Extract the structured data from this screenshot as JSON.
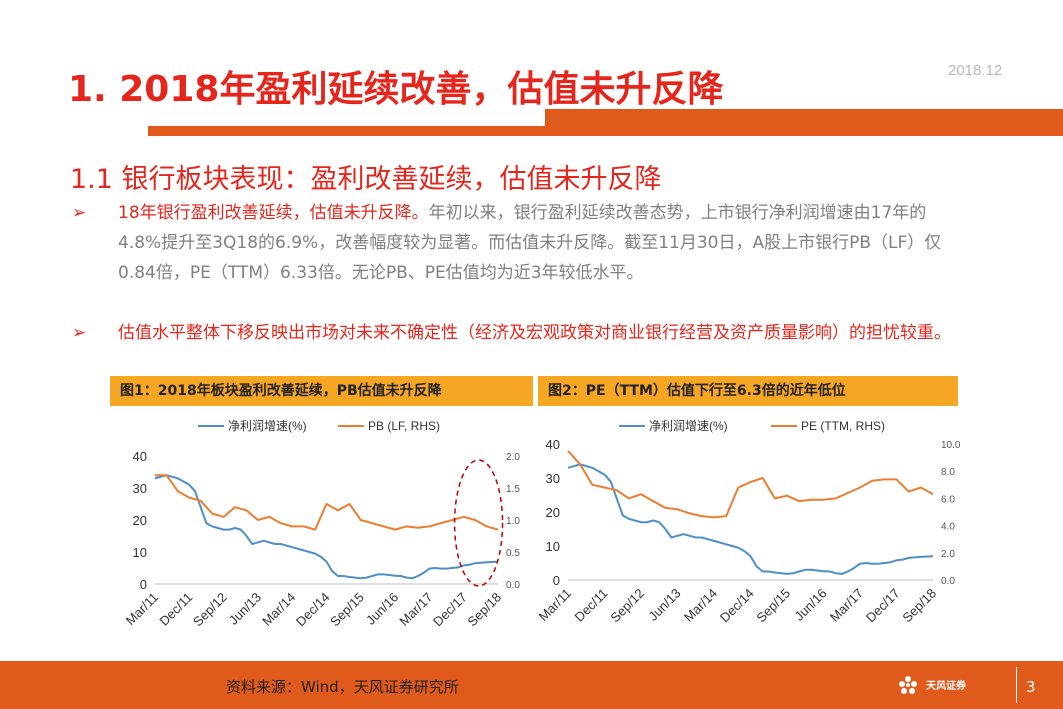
{
  "header": {
    "title": "1. 2018年盈利延续改善，估值未升反降",
    "date": "2018.12"
  },
  "section": {
    "subtitle": "1.1 银行板块表现：盈利改善延续，估值未升反降"
  },
  "bullets": [
    {
      "marker": "➢",
      "highlight": "18年银行盈利改善延续，估值未升反降。",
      "text": "年初以来，银行盈利延续改善态势，上市银行净利润增速由17年的4.8%提升至3Q18的6.9%，改善幅度较为显著。而估值未升反降。截至11月30日，A股上市银行PB（LF）仅0.84倍，PE（TTM）6.33倍。无论PB、PE估值均为近3年较低水平。"
    },
    {
      "marker": "➢",
      "highlight": "估值水平整体下移反映出市场对未来不确定性（经济及宏观政策对商业银行经营及资产质量影响）的担忧较重。",
      "text": ""
    }
  ],
  "chart_data": [
    {
      "type": "line",
      "title": "图1：2018年板块盈利改善延续，PB估值未升反降",
      "categories": [
        "Mar/11",
        "Dec/11",
        "Sep/12",
        "Jun/13",
        "Mar/14",
        "Dec/14",
        "Sep/15",
        "Jun/16",
        "Mar/17",
        "Dec/17",
        "Sep/18"
      ],
      "series": [
        {
          "name": "净利润增速(%)",
          "axis": "left",
          "color": "#4f8fc8",
          "x": [
            0,
            1,
            2,
            3,
            3.5,
            4,
            4.5,
            5,
            5.5,
            6,
            6.5,
            7,
            7.5,
            8,
            8.5,
            9,
            9.5,
            10,
            10.5,
            11,
            11.5,
            12,
            12.5,
            13,
            13.5,
            14,
            14.5,
            15,
            15.5,
            16,
            16.5,
            17,
            17.5,
            18,
            18.5,
            19,
            19.5,
            20,
            20.5,
            21,
            21.5,
            22,
            22.5,
            23,
            23.5,
            24,
            24.5,
            25,
            25.5,
            26,
            26.5,
            27,
            27.5,
            28,
            29,
            30
          ],
          "values": [
            33,
            34,
            33,
            31,
            29,
            24,
            19,
            18,
            17.5,
            17,
            17,
            17.5,
            17,
            15,
            12.5,
            13,
            13.5,
            13,
            12.5,
            12.5,
            12,
            11.5,
            11,
            10.5,
            10,
            9.5,
            8.5,
            7,
            4,
            2.5,
            2.5,
            2.2,
            2,
            1.8,
            2,
            2.5,
            3,
            3,
            2.8,
            2.6,
            2.5,
            2,
            1.8,
            2.5,
            3.5,
            4.8,
            5,
            4.8,
            4.8,
            5,
            5.2,
            5.8,
            6,
            6.5,
            6.8,
            7
          ]
        },
        {
          "name": "PB (LF, RHS)",
          "axis": "right",
          "color": "#ed7d31",
          "x": [
            0,
            1,
            2,
            3,
            4,
            5,
            6,
            7,
            8,
            9,
            10,
            11,
            12,
            13,
            14,
            15,
            16,
            17,
            18,
            19,
            20,
            21,
            22,
            23,
            24,
            25,
            26,
            27,
            28,
            29,
            30
          ],
          "values": [
            1.7,
            1.7,
            1.45,
            1.35,
            1.3,
            1.1,
            1.05,
            1.2,
            1.15,
            1.0,
            1.05,
            0.95,
            0.9,
            0.9,
            0.85,
            1.25,
            1.15,
            1.25,
            1.0,
            0.95,
            0.9,
            0.85,
            0.9,
            0.88,
            0.9,
            0.95,
            1.0,
            1.05,
            1.0,
            0.9,
            0.85
          ]
        }
      ],
      "y_left": {
        "min": 0,
        "max": 40,
        "ticks": [
          "0",
          "10",
          "20",
          "30",
          "40"
        ]
      },
      "y_right": {
        "min": 0,
        "max": 2.0,
        "ticks": [
          "0.0",
          "0.5",
          "1.0",
          "1.5",
          "2.0"
        ]
      },
      "annotation": "dashed red ellipse around the 2018 end of both series"
    },
    {
      "type": "line",
      "title": "图2：PE（TTM）估值下行至6.3倍的近年低位",
      "categories": [
        "Mar/11",
        "Dec/11",
        "Sep/12",
        "Jun/13",
        "Mar/14",
        "Dec/14",
        "Sep/15",
        "Jun/16",
        "Mar/17",
        "Dec/17",
        "Sep/18"
      ],
      "series": [
        {
          "name": "净利润增速(%)",
          "axis": "left",
          "color": "#4f8fc8",
          "x": [
            0,
            1,
            2,
            3,
            3.5,
            4,
            4.5,
            5,
            5.5,
            6,
            6.5,
            7,
            7.5,
            8,
            8.5,
            9,
            9.5,
            10,
            10.5,
            11,
            11.5,
            12,
            12.5,
            13,
            13.5,
            14,
            14.5,
            15,
            15.5,
            16,
            16.5,
            17,
            17.5,
            18,
            18.5,
            19,
            19.5,
            20,
            20.5,
            21,
            21.5,
            22,
            22.5,
            23,
            23.5,
            24,
            24.5,
            25,
            25.5,
            26,
            26.5,
            27,
            27.5,
            28,
            29,
            30
          ],
          "values": [
            33,
            34,
            33,
            31,
            29,
            24,
            19,
            18,
            17.5,
            17,
            17,
            17.5,
            17,
            15,
            12.5,
            13,
            13.5,
            13,
            12.5,
            12.5,
            12,
            11.5,
            11,
            10.5,
            10,
            9.5,
            8.5,
            7,
            4,
            2.5,
            2.5,
            2.2,
            2,
            1.8,
            2,
            2.5,
            3,
            3,
            2.8,
            2.6,
            2.5,
            2,
            1.8,
            2.5,
            3.5,
            4.8,
            5,
            4.8,
            4.8,
            5,
            5.2,
            5.8,
            6,
            6.5,
            6.8,
            7
          ]
        },
        {
          "name": "PE (TTM, RHS)",
          "axis": "right",
          "color": "#ed7d31",
          "x": [
            0,
            1,
            2,
            3,
            4,
            5,
            6,
            7,
            8,
            9,
            10,
            11,
            12,
            13,
            14,
            15,
            16,
            17,
            18,
            19,
            20,
            21,
            22,
            23,
            24,
            25,
            26,
            27,
            28,
            29,
            30
          ],
          "values": [
            9.5,
            8.5,
            7.0,
            6.8,
            6.6,
            6.0,
            6.3,
            5.8,
            5.3,
            5.2,
            4.9,
            4.7,
            4.6,
            4.7,
            6.8,
            7.2,
            7.5,
            6.0,
            6.2,
            5.8,
            5.9,
            5.9,
            6.0,
            6.4,
            6.8,
            7.3,
            7.4,
            7.4,
            6.5,
            6.8,
            6.3
          ]
        }
      ],
      "y_left": {
        "min": 0,
        "max": 40,
        "ticks": [
          "0",
          "10",
          "20",
          "30",
          "40"
        ]
      },
      "y_right": {
        "min": 0,
        "max": 10,
        "ticks": [
          "0.0",
          "2.0",
          "4.0",
          "6.0",
          "8.0",
          "10.0"
        ]
      }
    }
  ],
  "footer": {
    "source": "资料来源：Wind，天风证券研究所",
    "brand": "天风证券",
    "page": "3"
  }
}
